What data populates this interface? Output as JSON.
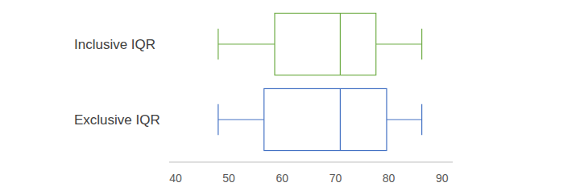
{
  "chart_data": {
    "type": "box",
    "orientation": "horizontal",
    "series": [
      {
        "name": "Inclusive IQR",
        "color": "#70ad47",
        "min": 48,
        "q1": 58.6,
        "median": 70.9,
        "q3": 77.6,
        "max": 86.2
      },
      {
        "name": "Exclusive IQR",
        "color": "#4472c4",
        "min": 48,
        "q1": 56.6,
        "median": 70.9,
        "q3": 79.6,
        "max": 86.2
      }
    ],
    "xlim": [
      38.8,
      92
    ],
    "xticks": [
      40,
      50,
      60,
      70,
      80,
      90
    ]
  }
}
